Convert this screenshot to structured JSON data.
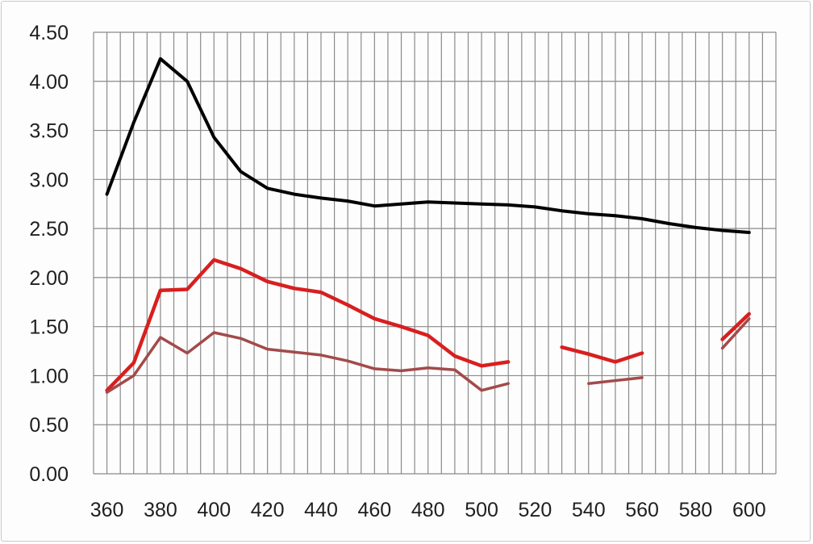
{
  "chart_data": {
    "type": "line",
    "title": "",
    "xlabel": "",
    "ylabel": "",
    "xlim": [
      355,
      610
    ],
    "ylim": [
      0,
      4.5
    ],
    "x_ticks": [
      360,
      380,
      400,
      420,
      440,
      460,
      480,
      500,
      520,
      540,
      560,
      580,
      600
    ],
    "x_tick_labels": [
      "360",
      "380",
      "400",
      "420",
      "440",
      "460",
      "480",
      "500",
      "520",
      "540",
      "560",
      "580",
      "600"
    ],
    "y_ticks": [
      0,
      0.5,
      1,
      1.5,
      2,
      2.5,
      3,
      3.5,
      4,
      4.5
    ],
    "y_tick_labels": [
      "0.00",
      "0.50",
      "1.00",
      "1.50",
      "2.00",
      "2.50",
      "3.00",
      "3.50",
      "4.00",
      "4.50"
    ],
    "grid": true,
    "x_grid_step": 5,
    "legend": "none",
    "series": [
      {
        "color": "#000000",
        "width": 4,
        "segments": [
          [
            [
              360,
              2.85
            ],
            [
              370,
              3.58
            ],
            [
              380,
              4.23
            ],
            [
              390,
              4.0
            ],
            [
              400,
              3.43
            ],
            [
              410,
              3.08
            ],
            [
              420,
              2.91
            ],
            [
              430,
              2.85
            ],
            [
              440,
              2.81
            ],
            [
              450,
              2.78
            ],
            [
              460,
              2.73
            ],
            [
              470,
              2.75
            ],
            [
              480,
              2.77
            ],
            [
              490,
              2.76
            ],
            [
              500,
              2.75
            ],
            [
              510,
              2.74
            ],
            [
              520,
              2.72
            ],
            [
              530,
              2.68
            ],
            [
              540,
              2.65
            ],
            [
              550,
              2.63
            ],
            [
              560,
              2.6
            ],
            [
              570,
              2.55
            ],
            [
              580,
              2.51
            ],
            [
              590,
              2.48
            ],
            [
              600,
              2.46
            ]
          ]
        ]
      },
      {
        "color": "#d81f1f",
        "width": 4.5,
        "segments": [
          [
            [
              360,
              0.85
            ],
            [
              370,
              1.13
            ],
            [
              380,
              1.87
            ],
            [
              390,
              1.88
            ],
            [
              400,
              2.18
            ],
            [
              410,
              2.09
            ],
            [
              420,
              1.96
            ],
            [
              430,
              1.89
            ],
            [
              440,
              1.85
            ],
            [
              450,
              1.72
            ],
            [
              460,
              1.58
            ],
            [
              470,
              1.5
            ],
            [
              480,
              1.41
            ],
            [
              490,
              1.2
            ],
            [
              500,
              1.1
            ],
            [
              510,
              1.14
            ]
          ],
          [
            [
              530,
              1.29
            ],
            [
              540,
              1.22
            ],
            [
              550,
              1.14
            ],
            [
              560,
              1.23
            ]
          ],
          [
            [
              590,
              1.37
            ],
            [
              600,
              1.63
            ]
          ]
        ]
      },
      {
        "color": "#a34a4a",
        "width": 3.5,
        "segments": [
          [
            [
              360,
              0.83
            ],
            [
              370,
              1.0
            ],
            [
              380,
              1.39
            ],
            [
              390,
              1.23
            ],
            [
              400,
              1.44
            ],
            [
              410,
              1.38
            ],
            [
              420,
              1.27
            ],
            [
              430,
              1.24
            ],
            [
              440,
              1.21
            ],
            [
              450,
              1.15
            ],
            [
              460,
              1.07
            ],
            [
              470,
              1.05
            ],
            [
              480,
              1.08
            ],
            [
              490,
              1.06
            ],
            [
              500,
              0.85
            ],
            [
              510,
              0.92
            ]
          ],
          [
            [
              540,
              0.92
            ],
            [
              560,
              0.98
            ]
          ],
          [
            [
              590,
              1.28
            ],
            [
              600,
              1.58
            ]
          ]
        ]
      }
    ]
  }
}
